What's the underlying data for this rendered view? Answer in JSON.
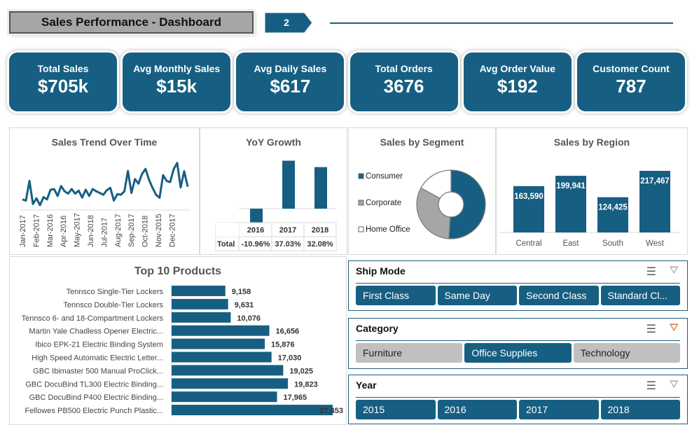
{
  "header": {
    "title": "Sales Performance - Dashboard",
    "page": "2"
  },
  "kpis": [
    {
      "label": "Total Sales",
      "value": "$705k"
    },
    {
      "label": "Avg Monthly Sales",
      "value": "$15k"
    },
    {
      "label": "Avg Daily Sales",
      "value": "$617"
    },
    {
      "label": "Total Orders",
      "value": "3676"
    },
    {
      "label": "Avg Order Value",
      "value": "$192"
    },
    {
      "label": "Customer Count",
      "value": "787"
    }
  ],
  "colors": {
    "primary": "#175f82",
    "inactive": "#c0c0c0",
    "corporate": "#a6a6a6"
  },
  "chart_data": [
    {
      "type": "line",
      "title": "Sales Trend Over Time",
      "x_tick_labels": [
        "Jan-2017",
        "Feb-2017",
        "Mar-2016",
        "Apr-2016",
        "May-2017",
        "Jun-2018",
        "Jul-2017",
        "Aug-2017",
        "Sep-2017",
        "Oct-2018",
        "Nov-2015",
        "Dec-2017"
      ],
      "values": [
        40,
        35,
        120,
        20,
        45,
        15,
        50,
        40,
        82,
        85,
        55,
        98,
        75,
        65,
        85,
        65,
        78,
        48,
        82,
        55,
        85,
        75,
        68,
        60,
        80,
        90,
        35,
        63,
        60,
        75,
        163,
        68,
        128,
        108,
        150,
        172,
        125,
        90,
        60,
        47,
        145,
        120,
        115,
        170,
        198,
        92,
        162,
        95
      ]
    },
    {
      "type": "bar",
      "title": "YoY Growth",
      "categories": [
        "2016",
        "2017",
        "2018"
      ],
      "row_label": "Total",
      "values": [
        -10.96,
        37.03,
        32.08
      ],
      "labels": [
        "-10.96%",
        "37.03%",
        "32.08%"
      ]
    },
    {
      "type": "pie",
      "title": "Sales by Segment",
      "donut": true,
      "categories": [
        "Consumer",
        "Corporate",
        "Home Office"
      ],
      "values": [
        51,
        32,
        17
      ],
      "colors": [
        "#175f82",
        "#a6a6a6",
        "#ffffff"
      ]
    },
    {
      "type": "bar",
      "title": "Sales by Region",
      "categories": [
        "Central",
        "East",
        "South",
        "West"
      ],
      "values": [
        163590,
        199941,
        124425,
        217467
      ],
      "labels": [
        "163,590",
        "199,941",
        "124,425",
        "217,467"
      ]
    },
    {
      "type": "bar",
      "orientation": "horizontal",
      "title": "Top 10 Products",
      "categories": [
        "Tennsco Single-Tier Lockers",
        "Tennsco Double-Tier Lockers",
        "Tennsco 6- and 18-Compartment Lockers",
        "Martin Yale Chadless Opener Electric...",
        "Ibico EPK-21 Electric Binding System",
        "High Speed Automatic Electric Letter...",
        "GBC Ibimaster 500 Manual ProClick...",
        "GBC DocuBind TL300 Electric Binding...",
        "GBC DocuBind P400 Electric Binding...",
        "Fellowes PB500 Electric Punch Plastic..."
      ],
      "values": [
        9158,
        9631,
        10076,
        16656,
        15876,
        17030,
        19025,
        19823,
        17965,
        27453
      ],
      "labels": [
        "9,158",
        "9,631",
        "10,076",
        "16,656",
        "15,876",
        "17,030",
        "19,025",
        "19,823",
        "17,965",
        "27,453"
      ]
    }
  ],
  "slicers": [
    {
      "title": "Ship Mode",
      "items": [
        {
          "label": "First Class",
          "selected": true
        },
        {
          "label": "Same Day",
          "selected": true
        },
        {
          "label": "Second Class",
          "selected": true
        },
        {
          "label": "Standard Cl...",
          "selected": true
        }
      ]
    },
    {
      "title": "Category",
      "items": [
        {
          "label": "Furniture",
          "selected": false
        },
        {
          "label": "Office Supplies",
          "selected": true
        },
        {
          "label": "Technology",
          "selected": false
        }
      ]
    },
    {
      "title": "Year",
      "items": [
        {
          "label": "2015",
          "selected": true
        },
        {
          "label": "2016",
          "selected": true
        },
        {
          "label": "2017",
          "selected": true
        },
        {
          "label": "2018",
          "selected": true
        }
      ]
    }
  ],
  "icons": {
    "multiselect": "multi-select-icon",
    "clear_filter": "clear-filter-icon"
  }
}
